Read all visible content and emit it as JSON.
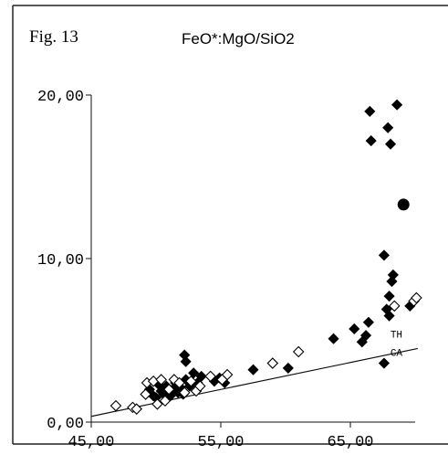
{
  "figure_label": "Fig. 13",
  "chart_data": {
    "type": "scatter",
    "title": "FeO*:MgO/SiO2",
    "xlabel": "",
    "ylabel": "",
    "xlim": [
      45,
      71
    ],
    "ylim": [
      0,
      21
    ],
    "x_ticks": [
      45,
      55,
      65
    ],
    "y_ticks": [
      0,
      10,
      20
    ],
    "x_tick_labels": [
      "45,00",
      "55,00",
      "65,00"
    ],
    "y_tick_labels": [
      "0,00",
      "10,00",
      "20,00"
    ],
    "divider_line": {
      "x": [
        45,
        70.2
      ],
      "y": [
        0.35,
        4.5
      ]
    },
    "line_labels": [
      "TH",
      "CA"
    ],
    "grid": false,
    "series": [
      {
        "marker": "filled-diamond",
        "points": [
          [
            49.5,
            2.0
          ],
          [
            49.8,
            1.6
          ],
          [
            50.0,
            1.5
          ],
          [
            50.2,
            2.3
          ],
          [
            50.4,
            1.9
          ],
          [
            50.6,
            1.7
          ],
          [
            50.8,
            2.2
          ],
          [
            51.1,
            1.6
          ],
          [
            51.3,
            2.0
          ],
          [
            51.5,
            2.4
          ],
          [
            51.7,
            1.8
          ],
          [
            51.9,
            2.1
          ],
          [
            52.1,
            1.7
          ],
          [
            52.3,
            2.6
          ],
          [
            52.6,
            2.2
          ],
          [
            52.9,
            3.0
          ],
          [
            52.2,
            4.1
          ],
          [
            52.3,
            3.7
          ],
          [
            53.2,
            2.4
          ],
          [
            53.5,
            2.8
          ],
          [
            54.5,
            2.5
          ],
          [
            54.9,
            2.7
          ],
          [
            55.3,
            2.4
          ],
          [
            57.5,
            3.2
          ],
          [
            60.2,
            3.3
          ],
          [
            63.7,
            5.1
          ],
          [
            65.3,
            5.7
          ],
          [
            65.9,
            4.9
          ],
          [
            66.2,
            5.3
          ],
          [
            66.4,
            6.1
          ],
          [
            66.5,
            19.0
          ],
          [
            66.6,
            17.2
          ],
          [
            67.6,
            10.2
          ],
          [
            67.6,
            3.6
          ],
          [
            67.9,
            18.0
          ],
          [
            68.1,
            17.0
          ],
          [
            68.0,
            7.7
          ],
          [
            68.2,
            8.6
          ],
          [
            68.3,
            9.0
          ],
          [
            68.6,
            19.4
          ],
          [
            68.0,
            6.5
          ],
          [
            67.8,
            6.9
          ],
          [
            69.6,
            7.1
          ]
        ]
      },
      {
        "marker": "open-diamond",
        "points": [
          [
            46.9,
            1.0
          ],
          [
            48.2,
            0.9
          ],
          [
            48.5,
            0.8
          ],
          [
            49.2,
            1.7
          ],
          [
            49.3,
            2.4
          ],
          [
            49.8,
            2.5
          ],
          [
            50.1,
            1.1
          ],
          [
            50.4,
            2.6
          ],
          [
            50.7,
            1.3
          ],
          [
            51.0,
            2.0
          ],
          [
            51.4,
            2.6
          ],
          [
            51.8,
            2.4
          ],
          [
            52.2,
            1.8
          ],
          [
            52.7,
            2.5
          ],
          [
            53.1,
            1.9
          ],
          [
            53.4,
            2.2
          ],
          [
            54.2,
            2.8
          ],
          [
            55.1,
            2.6
          ],
          [
            55.5,
            2.9
          ],
          [
            59.0,
            3.6
          ],
          [
            61.0,
            4.3
          ],
          [
            68.4,
            7.1
          ],
          [
            69.9,
            7.4
          ],
          [
            70.1,
            7.6
          ]
        ]
      },
      {
        "marker": "filled-circle",
        "points": [
          [
            69.1,
            13.3
          ]
        ]
      }
    ]
  }
}
